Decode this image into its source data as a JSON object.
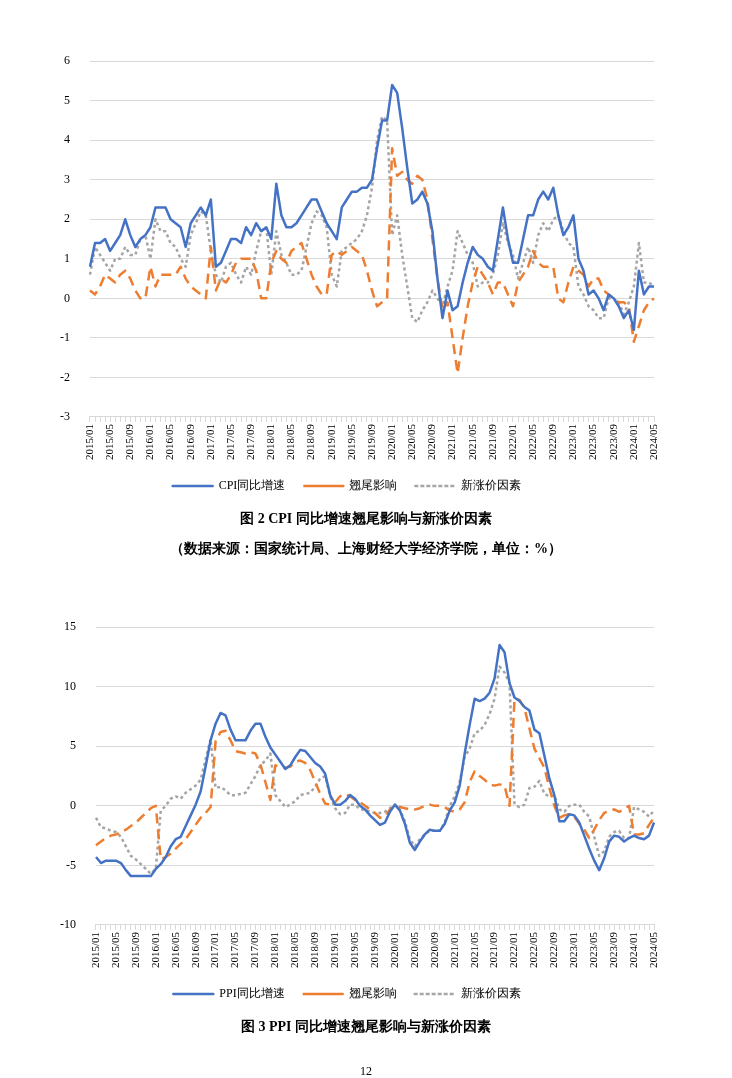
{
  "chart_data": [
    {
      "type": "line",
      "title": "图 2 CPI 同比增速翘尾影响与新涨价因素",
      "subtitle": "（数据来源：国家统计局、上海财经大学经济学院，单位：%）",
      "categories": [
        "2015/01",
        null,
        null,
        null,
        "2015/05",
        null,
        null,
        null,
        "2015/09",
        null,
        null,
        null,
        "2016/01",
        null,
        null,
        null,
        "2016/05",
        null,
        null,
        null,
        "2016/09",
        null,
        null,
        null,
        "2017/01",
        null,
        null,
        null,
        "2017/05",
        null,
        null,
        null,
        "2017/09",
        null,
        null,
        null,
        "2018/01",
        null,
        null,
        null,
        "2018/05",
        null,
        null,
        null,
        "2018/09",
        null,
        null,
        null,
        "2019/01",
        null,
        null,
        null,
        "2019/05",
        null,
        null,
        null,
        "2019/09",
        null,
        null,
        null,
        "2020/01",
        null,
        null,
        null,
        "2020/05",
        null,
        null,
        null,
        "2020/09",
        null,
        null,
        null,
        "2021/01",
        null,
        null,
        null,
        "2021/05",
        null,
        null,
        null,
        "2021/09",
        null,
        null,
        null,
        "2022/01",
        null,
        null,
        null,
        "2022/05",
        null,
        null,
        null,
        "2022/09",
        null,
        null,
        null,
        "2023/01",
        null,
        null,
        null,
        "2023/05",
        null,
        null,
        null,
        "2023/09",
        null,
        null,
        null,
        "2024/01",
        null,
        null,
        null,
        "2024/05"
      ],
      "series": [
        {
          "name": "CPI同比增速",
          "color": "#4472c4",
          "line_style": "solid",
          "values": [
            0.8,
            1.4,
            1.4,
            1.5,
            1.2,
            1.4,
            1.6,
            2.0,
            1.6,
            1.3,
            1.5,
            1.6,
            1.8,
            2.3,
            2.3,
            2.3,
            2.0,
            1.9,
            1.8,
            1.3,
            1.9,
            2.1,
            2.3,
            2.1,
            2.5,
            0.8,
            0.9,
            1.2,
            1.5,
            1.5,
            1.4,
            1.8,
            1.6,
            1.9,
            1.7,
            1.8,
            1.5,
            2.9,
            2.1,
            1.8,
            1.8,
            1.9,
            2.1,
            2.3,
            2.5,
            2.5,
            2.2,
            1.9,
            1.7,
            1.5,
            2.3,
            2.5,
            2.7,
            2.7,
            2.8,
            2.8,
            3.0,
            3.8,
            4.5,
            4.5,
            5.4,
            5.2,
            4.3,
            3.3,
            2.4,
            2.5,
            2.7,
            2.4,
            1.7,
            0.5,
            -0.5,
            0.2,
            -0.3,
            -0.2,
            0.4,
            0.9,
            1.3,
            1.1,
            1.0,
            0.8,
            0.7,
            1.5,
            2.3,
            1.5,
            0.9,
            0.9,
            1.5,
            2.1,
            2.1,
            2.5,
            2.7,
            2.5,
            2.8,
            2.1,
            1.6,
            1.8,
            2.1,
            1.0,
            0.7,
            0.1,
            0.2,
            0.0,
            -0.3,
            0.1,
            0.0,
            -0.2,
            -0.5,
            -0.3,
            -0.8,
            0.7,
            0.1,
            0.3,
            0.3
          ]
        },
        {
          "name": "翘尾影响",
          "color": "#ed7d31",
          "line_style": "dashed",
          "values": [
            0.2,
            0.1,
            0.3,
            0.6,
            0.5,
            0.4,
            0.6,
            0.7,
            0.5,
            0.2,
            0.0,
            0.0,
            0.8,
            0.3,
            0.6,
            0.6,
            0.6,
            0.6,
            0.8,
            0.5,
            0.3,
            0.2,
            0.1,
            0.0,
            1.3,
            0.2,
            0.5,
            0.4,
            0.6,
            0.9,
            1.0,
            1.0,
            1.0,
            0.7,
            0.0,
            0.0,
            0.9,
            1.2,
            1.0,
            0.9,
            1.2,
            1.3,
            1.4,
            1.0,
            0.6,
            0.3,
            0.1,
            0.1,
            1.1,
            1.2,
            1.1,
            1.2,
            1.3,
            1.2,
            1.1,
            0.7,
            0.2,
            -0.2,
            -0.1,
            0.0,
            3.8,
            3.1,
            3.2,
            3.0,
            2.9,
            3.1,
            3.0,
            2.5,
            1.5,
            0.5,
            -0.3,
            -0.1,
            -1.0,
            -1.9,
            -1.0,
            -0.2,
            0.4,
            0.8,
            0.6,
            0.4,
            0.1,
            0.4,
            0.4,
            0.1,
            -0.2,
            0.4,
            0.6,
            0.8,
            1.2,
            0.9,
            0.8,
            0.8,
            0.8,
            0.0,
            -0.1,
            0.4,
            0.8,
            0.7,
            0.6,
            0.3,
            0.5,
            0.5,
            0.2,
            0.1,
            0.0,
            -0.1,
            -0.1,
            -0.2,
            -1.1,
            -0.7,
            -0.3,
            -0.1,
            0.0
          ]
        },
        {
          "name": "新涨价因素",
          "color": "#a5a5a5",
          "line_style": "dotted",
          "values": [
            0.6,
            1.3,
            1.1,
            0.9,
            0.7,
            1.0,
            1.0,
            1.3,
            1.1,
            1.1,
            1.5,
            1.6,
            1.0,
            2.0,
            1.7,
            1.7,
            1.4,
            1.3,
            1.0,
            0.8,
            1.6,
            1.9,
            2.2,
            2.1,
            1.2,
            0.6,
            0.4,
            0.8,
            0.9,
            0.6,
            0.4,
            0.8,
            0.6,
            1.2,
            1.7,
            1.8,
            0.6,
            1.7,
            1.1,
            0.9,
            0.6,
            0.6,
            0.7,
            1.3,
            1.9,
            2.2,
            2.1,
            1.8,
            0.6,
            0.3,
            1.2,
            1.3,
            1.4,
            1.5,
            1.7,
            2.1,
            2.8,
            4.0,
            4.6,
            4.5,
            1.6,
            2.1,
            1.1,
            0.3,
            -0.5,
            -0.6,
            -0.3,
            -0.1,
            0.2,
            0.0,
            -0.2,
            0.3,
            0.7,
            1.7,
            1.4,
            1.1,
            0.9,
            0.3,
            0.4,
            0.4,
            0.6,
            1.1,
            1.9,
            1.4,
            1.1,
            0.5,
            0.9,
            1.3,
            0.9,
            1.6,
            1.9,
            1.7,
            2.0,
            2.1,
            1.7,
            1.4,
            1.3,
            0.3,
            0.1,
            -0.2,
            -0.3,
            -0.5,
            -0.5,
            0.0,
            0.0,
            -0.1,
            -0.4,
            -0.1,
            0.3,
            1.4,
            0.4,
            0.4,
            0.3
          ]
        }
      ],
      "ylim": [
        -3,
        6
      ],
      "yticks": [
        -3,
        -2,
        -1,
        0,
        1,
        2,
        3,
        4,
        5,
        6
      ],
      "grid": "y",
      "legend": "bottom",
      "marker": "none"
    },
    {
      "type": "line",
      "title": "图 3 PPI 同比增速翘尾影响与新涨价因素",
      "annotations": [
        "12"
      ],
      "categories": [
        "2015/01",
        null,
        null,
        null,
        "2015/05",
        null,
        null,
        null,
        "2015/09",
        null,
        null,
        null,
        "2016/01",
        null,
        null,
        null,
        "2016/05",
        null,
        null,
        null,
        "2016/09",
        null,
        null,
        null,
        "2017/01",
        null,
        null,
        null,
        "2017/05",
        null,
        null,
        null,
        "2017/09",
        null,
        null,
        null,
        "2018/01",
        null,
        null,
        null,
        "2018/05",
        null,
        null,
        null,
        "2018/09",
        null,
        null,
        null,
        "2019/01",
        null,
        null,
        null,
        "2019/05",
        null,
        null,
        null,
        "2019/09",
        null,
        null,
        null,
        "2020/01",
        null,
        null,
        null,
        "2020/05",
        null,
        null,
        null,
        "2020/09",
        null,
        null,
        null,
        "2021/01",
        null,
        null,
        null,
        "2021/05",
        null,
        null,
        null,
        "2021/09",
        null,
        null,
        null,
        "2022/01",
        null,
        null,
        null,
        "2022/05",
        null,
        null,
        null,
        "2022/09",
        null,
        null,
        null,
        "2023/01",
        null,
        null,
        null,
        "2023/05",
        null,
        null,
        null,
        "2023/09",
        null,
        null,
        null,
        "2024/01",
        null,
        null,
        null,
        "2024/05"
      ],
      "series": [
        {
          "name": "PPI同比增速",
          "color": "#4472c4",
          "line_style": "solid",
          "values": [
            -4.3,
            -4.8,
            -4.6,
            -4.6,
            -4.6,
            -4.8,
            -5.4,
            -5.9,
            -5.9,
            -5.9,
            -5.9,
            -5.9,
            -5.3,
            -4.9,
            -4.3,
            -3.4,
            -2.8,
            -2.6,
            -1.7,
            -0.8,
            0.1,
            1.2,
            3.3,
            5.5,
            6.9,
            7.8,
            7.6,
            6.4,
            5.5,
            5.5,
            5.5,
            6.3,
            6.9,
            6.9,
            5.8,
            4.9,
            4.3,
            3.7,
            3.1,
            3.4,
            4.1,
            4.7,
            4.6,
            4.1,
            3.6,
            3.3,
            2.7,
            0.9,
            0.1,
            0.1,
            0.4,
            0.9,
            0.6,
            0.0,
            -0.3,
            -0.8,
            -1.2,
            -1.6,
            -1.4,
            -0.5,
            0.1,
            -0.4,
            -1.5,
            -3.1,
            -3.7,
            -3.0,
            -2.4,
            -2.0,
            -2.1,
            -2.1,
            -1.5,
            -0.4,
            0.3,
            1.7,
            4.4,
            6.8,
            9.0,
            8.8,
            9.0,
            9.5,
            10.7,
            13.5,
            12.9,
            10.3,
            9.1,
            8.8,
            8.3,
            8.0,
            6.4,
            6.1,
            4.2,
            2.3,
            0.9,
            -1.3,
            -1.3,
            -0.7,
            -0.8,
            -1.4,
            -2.5,
            -3.6,
            -4.6,
            -5.4,
            -4.4,
            -3.0,
            -2.5,
            -2.6,
            -3.0,
            -2.7,
            -2.5,
            -2.7,
            -2.8,
            -2.5,
            -1.4
          ]
        },
        {
          "name": "翘尾影响",
          "color": "#ed7d31",
          "line_style": "dashed",
          "values": [
            -3.3,
            -3.0,
            -2.7,
            -2.5,
            -2.4,
            -2.2,
            -2.0,
            -1.7,
            -1.4,
            -1.0,
            -0.6,
            -0.2,
            0.0,
            -4.5,
            -4.3,
            -4.0,
            -3.6,
            -3.2,
            -2.8,
            -2.2,
            -1.6,
            -1.0,
            -0.6,
            -0.1,
            5.4,
            6.2,
            6.3,
            5.5,
            4.6,
            4.5,
            4.4,
            4.5,
            4.4,
            3.5,
            2.0,
            0.5,
            3.4,
            3.3,
            3.2,
            3.3,
            3.7,
            3.8,
            3.6,
            3.0,
            2.0,
            1.0,
            0.2,
            0.1,
            0.3,
            0.8,
            1.0,
            0.8,
            0.5,
            0.3,
            0.0,
            -0.3,
            -0.6,
            -1.0,
            -0.9,
            -0.3,
            0.0,
            -0.1,
            -0.2,
            -0.3,
            -0.3,
            -0.2,
            0.0,
            0.1,
            0.0,
            0.0,
            -0.1,
            -0.4,
            -0.5,
            -0.3,
            0.3,
            2.0,
            2.9,
            2.5,
            2.2,
            1.8,
            1.7,
            1.8,
            1.7,
            0.0,
            9.0,
            8.9,
            8.2,
            6.5,
            4.8,
            4.0,
            3.2,
            1.5,
            0.0,
            -1.0,
            -0.8,
            -0.7,
            -0.9,
            -1.5,
            -2.0,
            -2.7,
            -2.0,
            -1.2,
            -0.6,
            -0.4,
            -0.3,
            -0.5,
            -0.3,
            0.0,
            -2.4,
            -2.4,
            -2.3,
            -1.6,
            -1.0
          ]
        },
        {
          "name": "新涨价因素",
          "color": "#a5a5a5",
          "line_style": "dotted",
          "values": [
            -1.0,
            -1.8,
            -1.9,
            -2.1,
            -2.2,
            -2.6,
            -3.4,
            -4.2,
            -4.5,
            -4.9,
            -5.3,
            -5.7,
            -5.3,
            -0.4,
            0.0,
            0.6,
            0.8,
            0.6,
            1.1,
            1.4,
            1.7,
            2.2,
            3.9,
            5.6,
            1.5,
            1.6,
            1.3,
            0.9,
            0.9,
            1.0,
            1.1,
            1.8,
            2.5,
            3.4,
            3.8,
            4.4,
            0.9,
            0.4,
            -0.1,
            0.1,
            0.4,
            0.9,
            1.0,
            1.1,
            1.6,
            2.3,
            2.5,
            0.8,
            -0.2,
            -0.7,
            -0.6,
            0.1,
            0.1,
            -0.3,
            -0.3,
            -0.5,
            -0.6,
            -0.6,
            -0.5,
            -0.2,
            0.1,
            -0.3,
            -1.3,
            -2.8,
            -3.4,
            -2.8,
            -2.4,
            -2.1,
            -2.1,
            -2.1,
            -1.4,
            0.0,
            0.8,
            2.0,
            4.1,
            4.8,
            6.1,
            6.3,
            6.8,
            7.7,
            9.0,
            11.7,
            11.2,
            10.3,
            0.1,
            -0.1,
            0.1,
            1.5,
            1.6,
            2.1,
            1.0,
            0.8,
            0.9,
            -0.3,
            -0.5,
            0.0,
            0.1,
            0.1,
            -0.5,
            -0.9,
            -2.6,
            -4.2,
            -3.8,
            -2.6,
            -2.2,
            -2.1,
            -2.7,
            -2.7,
            -0.1,
            -0.3,
            -0.5,
            -0.9,
            -0.4
          ]
        }
      ],
      "ylim": [
        -10,
        15
      ],
      "yticks": [
        -10,
        -5,
        0,
        5,
        10,
        15
      ],
      "grid": "y",
      "legend": "bottom",
      "marker": "none"
    }
  ]
}
